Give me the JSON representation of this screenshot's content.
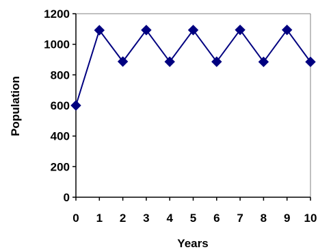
{
  "chart_data": {
    "type": "line",
    "xlabel": "Years",
    "ylabel": "Population",
    "xlim": [
      0,
      10
    ],
    "ylim": [
      0,
      1200
    ],
    "x_ticks": [
      0,
      1,
      2,
      3,
      4,
      5,
      6,
      7,
      8,
      9,
      10
    ],
    "y_ticks": [
      0,
      200,
      400,
      600,
      800,
      1000,
      1200
    ],
    "grid": false,
    "marker": "diamond",
    "colors": {
      "series": "#000080",
      "axis": "#000000",
      "frame": "#808080"
    },
    "series": [
      {
        "x": [
          0,
          1,
          2,
          3,
          4,
          5,
          6,
          7,
          8,
          9,
          10
        ],
        "values": [
          600,
          1092,
          887,
          1093,
          886,
          1093,
          886,
          1094,
          885,
          1094,
          885
        ]
      }
    ]
  }
}
